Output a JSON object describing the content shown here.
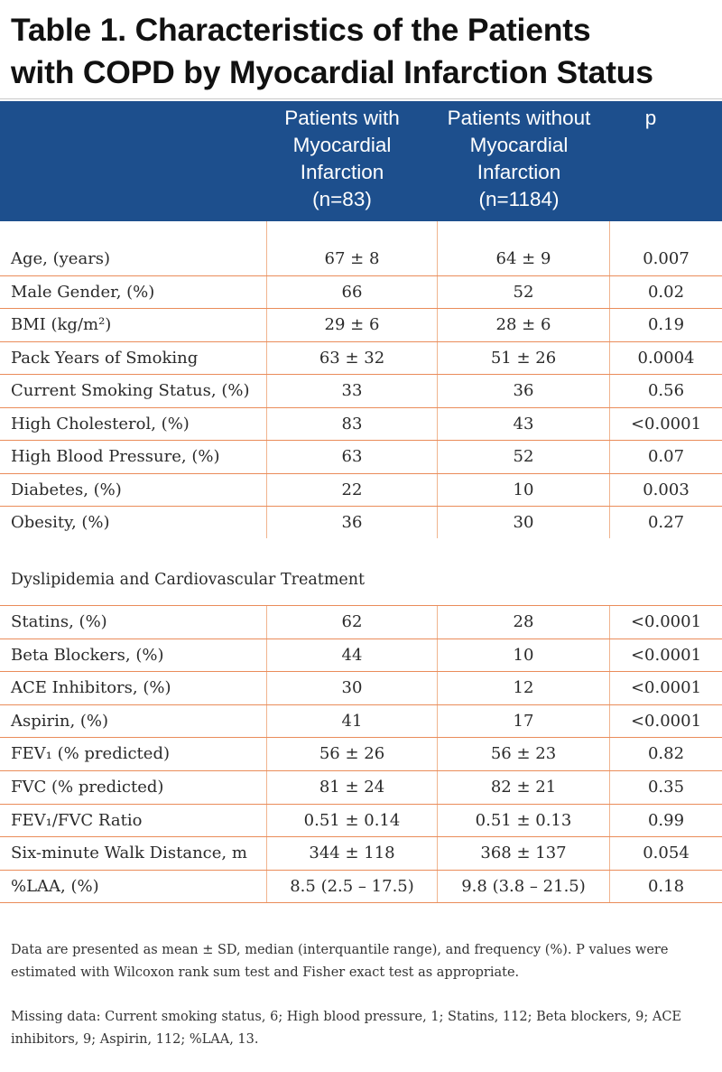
{
  "title": {
    "line1": "Table 1. Characteristics of the Patients",
    "line2": "with COPD by Myocardial Infarction Status"
  },
  "header": {
    "col1": [
      "Patients with",
      "Myocardial",
      "Infarction",
      "(n=83)"
    ],
    "col2": [
      "Patients without",
      "Myocardial",
      "Infarction",
      "(n=1184)"
    ],
    "col3": "p"
  },
  "rows_top": [
    {
      "label": "Age, (years)",
      "mi": "67 ± 8",
      "no_mi": "64 ± 9",
      "p": "0.007"
    },
    {
      "label": "Male Gender, (%)",
      "mi": "66",
      "no_mi": "52",
      "p": "0.02"
    },
    {
      "label": "BMI (kg/m²)",
      "mi": "29 ± 6",
      "no_mi": "28 ± 6",
      "p": "0.19"
    },
    {
      "label": "Pack Years of Smoking",
      "mi": "63 ± 32",
      "no_mi": "51 ± 26",
      "p": "0.0004"
    },
    {
      "label": "Current Smoking Status, (%)",
      "mi": "33",
      "no_mi": "36",
      "p": "0.56"
    },
    {
      "label": "High Cholesterol, (%)",
      "mi": "83",
      "no_mi": "43",
      "p": "<0.0001"
    },
    {
      "label": "High Blood Pressure, (%)",
      "mi": "63",
      "no_mi": "52",
      "p": "0.07"
    },
    {
      "label": "Diabetes, (%)",
      "mi": "22",
      "no_mi": "10",
      "p": "0.003"
    },
    {
      "label": "Obesity, (%)",
      "mi": "36",
      "no_mi": "30",
      "p": "0.27"
    }
  ],
  "section_title": "Dyslipidemia and Cardiovascular Treatment",
  "rows_bottom": [
    {
      "label": "Statins, (%)",
      "mi": "62",
      "no_mi": "28",
      "p": "<0.0001"
    },
    {
      "label": "Beta Blockers, (%)",
      "mi": "44",
      "no_mi": "10",
      "p": "<0.0001"
    },
    {
      "label": "ACE Inhibitors, (%)",
      "mi": "30",
      "no_mi": "12",
      "p": "<0.0001"
    },
    {
      "label": "Aspirin, (%)",
      "mi": "41",
      "no_mi": "17",
      "p": "<0.0001"
    },
    {
      "label": "FEV₁ (% predicted)",
      "mi": "56 ± 26",
      "no_mi": "56 ± 23",
      "p": "0.82"
    },
    {
      "label": "FVC (% predicted)",
      "mi": "81 ± 24",
      "no_mi": "82 ± 21",
      "p": "0.35"
    },
    {
      "label": "FEV₁/FVC Ratio",
      "mi": "0.51 ± 0.14",
      "no_mi": "0.51 ± 0.13",
      "p": "0.99"
    },
    {
      "label": "Six-minute Walk Distance, m",
      "mi": "344 ± 118",
      "no_mi": "368 ± 137",
      "p": "0.054"
    },
    {
      "label": "%LAA,  (%)",
      "mi": "8.5 (2.5 – 17.5)",
      "no_mi": "9.8 (3.8 – 21.5)",
      "p": "0.18"
    }
  ],
  "notes": {
    "data_note": "Data are presented as mean ± SD, median (interquantile range), and frequency (%). P values were estimated with Wilcoxon rank sum test and Fisher exact test as appropriate.",
    "missing_note": "Missing data: Current smoking status, 6; High blood pressure, 1; Statins, 112; Beta blockers, 9; ACE inhibitors, 9; Aspirin, 112; %LAA, 13."
  },
  "colors": {
    "header_bg": "#1d4f8d",
    "rule": "#ea8c5a",
    "column_divider": "#f0b48f"
  }
}
